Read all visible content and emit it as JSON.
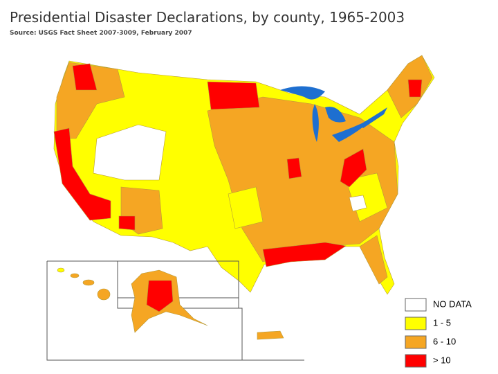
{
  "title": "Presidential Disaster Declarations, by county, 1965-2003",
  "source": "Source: USGS Fact Sheet 2007-3009, February 2007",
  "legend": [
    {
      "label": "NO DATA",
      "color": "#ffffff"
    },
    {
      "label": "1 - 5",
      "color": "#ffff00"
    },
    {
      "label": "6 - 10",
      "color": "#f5a623"
    },
    {
      "label": "> 10",
      "color": "#ff0000"
    }
  ]
}
